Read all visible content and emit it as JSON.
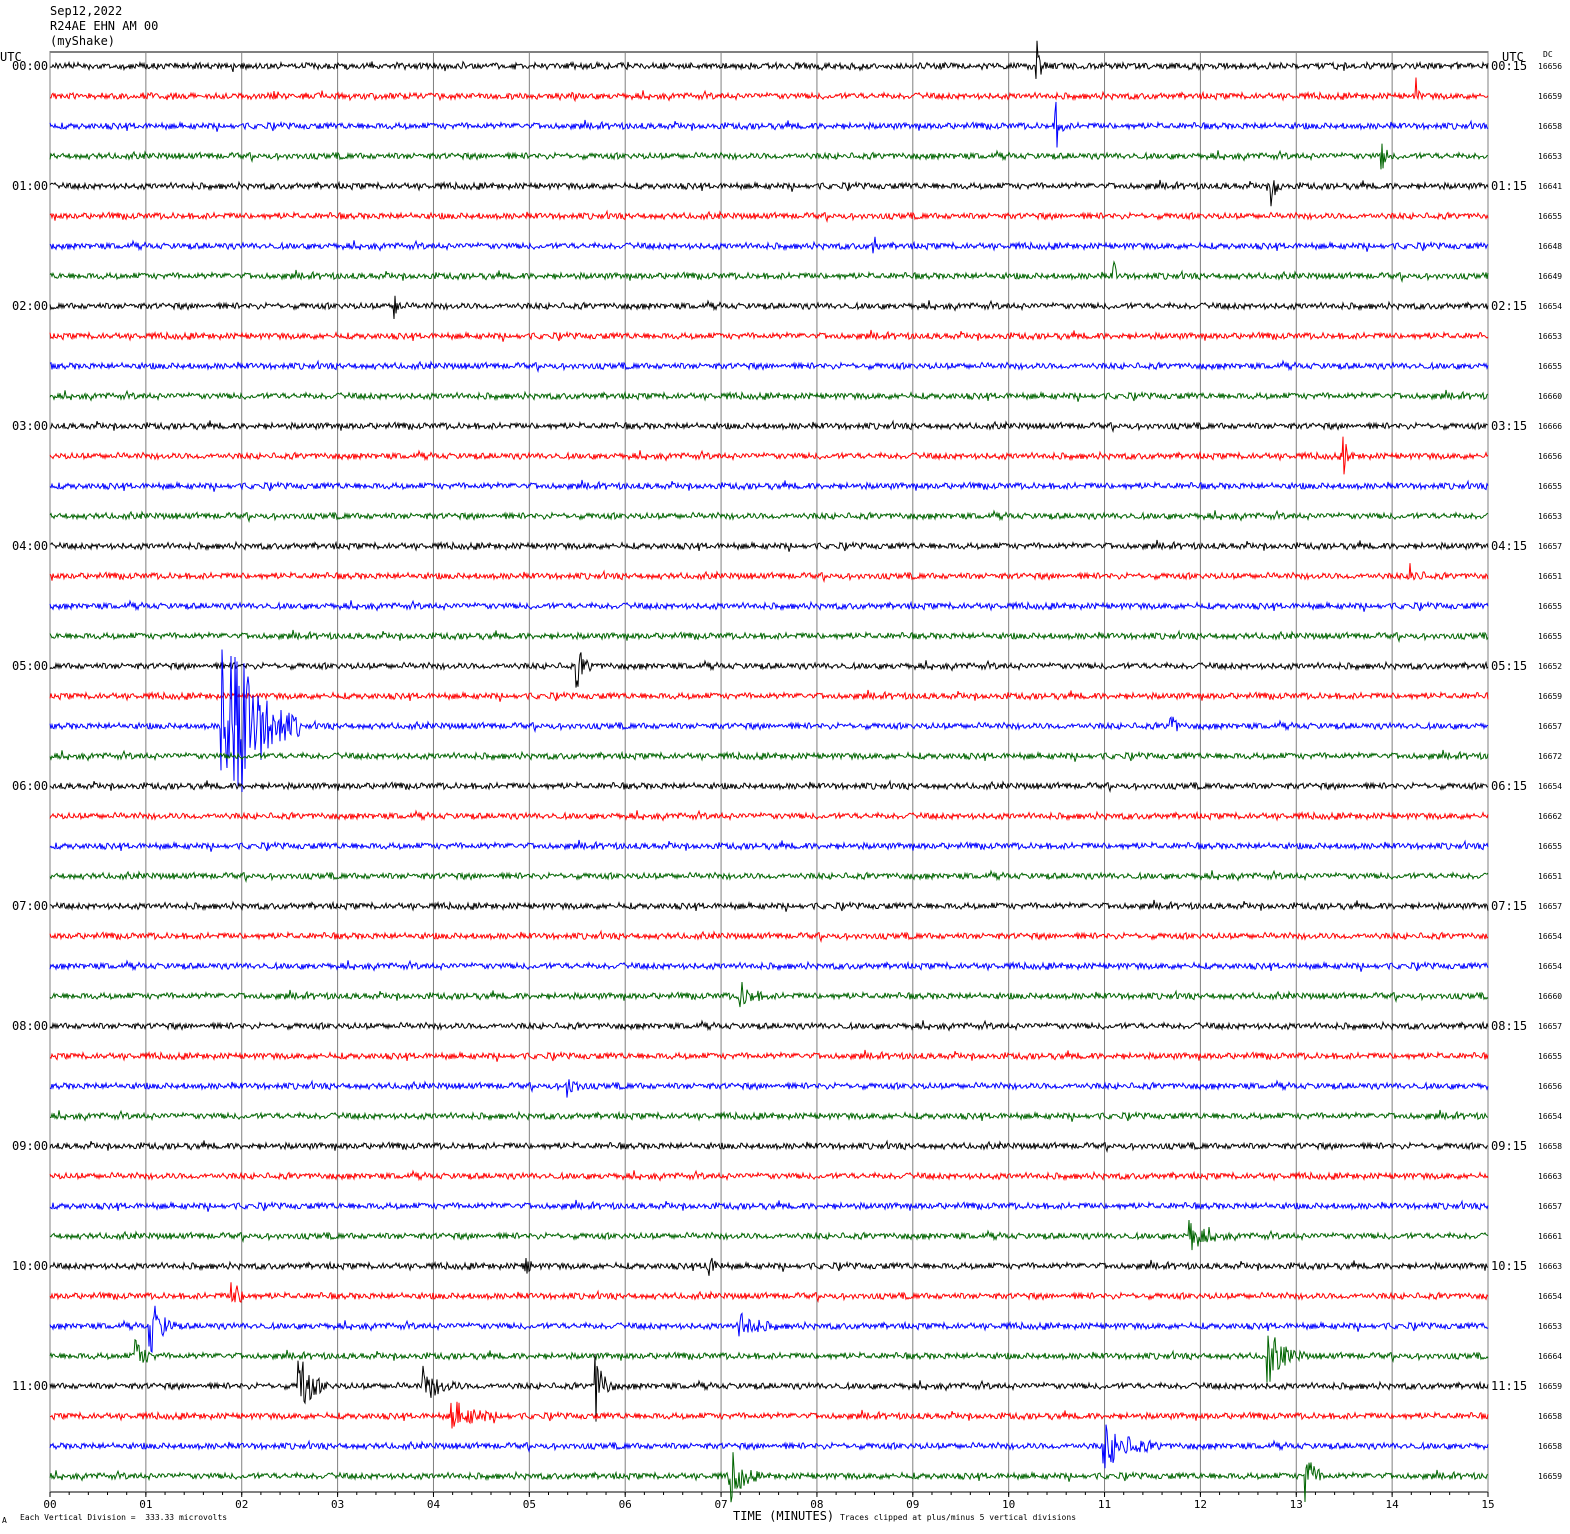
{
  "header": {
    "date": "Sep12,2022",
    "station": "R24AE EHN AM 00",
    "network": "(myShake)"
  },
  "left_utc_label": "UTC",
  "right_utc_label": "UTC",
  "dc_label": "DC",
  "footer": {
    "scale_note": "Each Vertical Division =  333.33 microvolts",
    "xlabel": "TIME (MINUTES)",
    "clip_note": "Traces clipped at plus/minus 5 vertical divisions",
    "corner_mark": "A"
  },
  "colors": {
    "trace_cycle": [
      "#000000",
      "#ff0000",
      "#0000ff",
      "#006400"
    ],
    "grid": "#808080"
  },
  "chart_data": {
    "type": "line",
    "title": "R24AE EHN AM 00",
    "xlabel": "TIME (MINUTES)",
    "xlim": [
      0,
      15
    ],
    "x_ticks": [
      "00",
      "01",
      "02",
      "03",
      "04",
      "05",
      "06",
      "07",
      "08",
      "09",
      "10",
      "11",
      "12",
      "13",
      "14",
      "15"
    ],
    "rows_per_hour": 4,
    "left_hour_labels": [
      "00:00",
      "01:00",
      "02:00",
      "03:00",
      "04:00",
      "05:00",
      "06:00",
      "07:00",
      "08:00",
      "09:00",
      "10:00",
      "11:00"
    ],
    "right_hour_labels": [
      "00:15",
      "01:15",
      "02:15",
      "03:15",
      "04:15",
      "05:15",
      "06:15",
      "07:15",
      "08:15",
      "09:15",
      "10:15",
      "11:15"
    ],
    "dc_offsets": [
      "16656",
      "16659",
      "16658",
      "16653",
      "16641",
      "16655",
      "16648",
      "16649",
      "16654",
      "16653",
      "16655",
      "16660",
      "16666",
      "16656",
      "16655",
      "16653",
      "16657",
      "16651",
      "16655",
      "16655",
      "16652",
      "16659",
      "16657",
      "16672",
      "16654",
      "16662",
      "16655",
      "16651",
      "16657",
      "16654",
      "16654",
      "16660",
      "16657",
      "16655",
      "16656",
      "16654",
      "16658",
      "16663",
      "16657",
      "16661",
      "16663",
      "16654",
      "16653",
      "16664",
      "16659",
      "16658",
      "16658",
      "16659"
    ],
    "events": [
      {
        "row": 22,
        "minute": 1.8,
        "amplitude": 5,
        "duration_min": 0.8,
        "note": "largest event, clipped"
      },
      {
        "row": 44,
        "minute": 2.6,
        "amplitude": 1.3,
        "duration_min": 0.3
      },
      {
        "row": 44,
        "minute": 5.7,
        "amplitude": 1.2,
        "duration_min": 0.2
      },
      {
        "row": 42,
        "minute": 1.05,
        "amplitude": 1.0,
        "duration_min": 0.3
      },
      {
        "row": 43,
        "minute": 12.7,
        "amplitude": 1.0,
        "duration_min": 0.4
      },
      {
        "row": 47,
        "minute": 7.1,
        "amplitude": 1.0,
        "duration_min": 0.3
      },
      {
        "row": 47,
        "minute": 13.1,
        "amplitude": 1.0,
        "duration_min": 0.2
      },
      {
        "row": 46,
        "minute": 11.0,
        "amplitude": 0.8,
        "duration_min": 0.6
      },
      {
        "row": 4,
        "minute": 12.75,
        "amplitude": 0.9,
        "duration_min": 0.1
      },
      {
        "row": 0,
        "minute": 10.3,
        "amplitude": 0.8,
        "duration_min": 0.1
      },
      {
        "row": 2,
        "minute": 10.5,
        "amplitude": 0.8,
        "duration_min": 0.1
      },
      {
        "row": 20,
        "minute": 5.5,
        "amplitude": 0.7,
        "duration_min": 0.2
      },
      {
        "row": 3,
        "minute": 13.9,
        "amplitude": 0.5,
        "duration_min": 0.1
      },
      {
        "row": 1,
        "minute": 14.25,
        "amplitude": 0.6,
        "duration_min": 0.05
      },
      {
        "row": 13,
        "minute": 13.5,
        "amplitude": 0.6,
        "duration_min": 0.1
      },
      {
        "row": 17,
        "minute": 14.2,
        "amplitude": 0.5,
        "duration_min": 0.15
      },
      {
        "row": 22,
        "minute": 11.7,
        "amplitude": 0.5,
        "duration_min": 0.1
      },
      {
        "row": 6,
        "minute": 8.6,
        "amplitude": 0.6,
        "duration_min": 0.05
      },
      {
        "row": 7,
        "minute": 11.1,
        "amplitude": 0.6,
        "duration_min": 0.05
      },
      {
        "row": 8,
        "minute": 3.6,
        "amplitude": 0.5,
        "duration_min": 0.1
      },
      {
        "row": 34,
        "minute": 5.4,
        "amplitude": 0.4,
        "duration_min": 0.2
      },
      {
        "row": 39,
        "minute": 11.9,
        "amplitude": 0.5,
        "duration_min": 0.4
      },
      {
        "row": 40,
        "minute": 4.95,
        "amplitude": 0.5,
        "duration_min": 0.1
      },
      {
        "row": 40,
        "minute": 6.85,
        "amplitude": 0.5,
        "duration_min": 0.2
      },
      {
        "row": 41,
        "minute": 1.9,
        "amplitude": 0.6,
        "duration_min": 0.2
      },
      {
        "row": 42,
        "minute": 7.2,
        "amplitude": 0.5,
        "duration_min": 0.4
      },
      {
        "row": 43,
        "minute": 0.9,
        "amplitude": 0.7,
        "duration_min": 0.2
      },
      {
        "row": 44,
        "minute": 3.9,
        "amplitude": 0.6,
        "duration_min": 0.4
      },
      {
        "row": 45,
        "minute": 4.2,
        "amplitude": 0.5,
        "duration_min": 0.6
      },
      {
        "row": 31,
        "minute": 7.2,
        "amplitude": 0.5,
        "duration_min": 0.3
      }
    ]
  }
}
